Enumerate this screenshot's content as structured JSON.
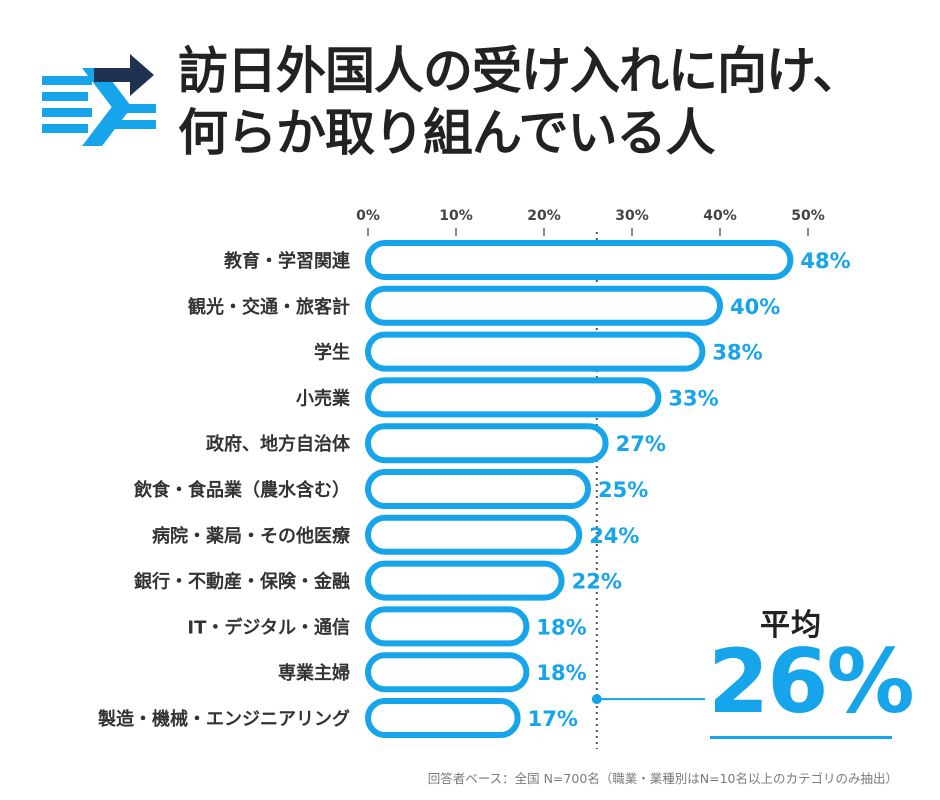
{
  "title": {
    "line1": "訪日外国人の受け入れに向け、",
    "line2": "何らか取り組んでいる人"
  },
  "icon": "arrows-exchange-icon",
  "colors": {
    "accent": "#16a4ea",
    "navy": "#1f3252",
    "text": "#2b2b2b"
  },
  "average": {
    "label": "平均",
    "value_text": "26%",
    "value": 26
  },
  "footnote": "回答者ベース：全国 N=700名（職業・業種別はN=10名以上のカテゴリのみ抽出）",
  "chart_data": {
    "type": "bar",
    "orientation": "horizontal",
    "categories": [
      "教育・学習関連",
      "観光・交通・旅客計",
      "学生",
      "小売業",
      "政府、地方自治体",
      "飲食・食品業（農水含む）",
      "病院・薬局・その他医療",
      "銀行・不動産・保険・金融",
      "IT・デジタル・通信",
      "専業主婦",
      "製造・機械・エンジニアリング"
    ],
    "values": [
      48,
      40,
      38,
      33,
      27,
      25,
      24,
      22,
      18,
      18,
      17
    ],
    "value_labels": [
      "48%",
      "40%",
      "38%",
      "33%",
      "27%",
      "25%",
      "24%",
      "22%",
      "18%",
      "18%",
      "17%"
    ],
    "x_ticks": [
      "0%",
      "10%",
      "20%",
      "30%",
      "40%",
      "50%"
    ],
    "xlim": [
      0,
      50
    ],
    "reference_line": 26
  }
}
